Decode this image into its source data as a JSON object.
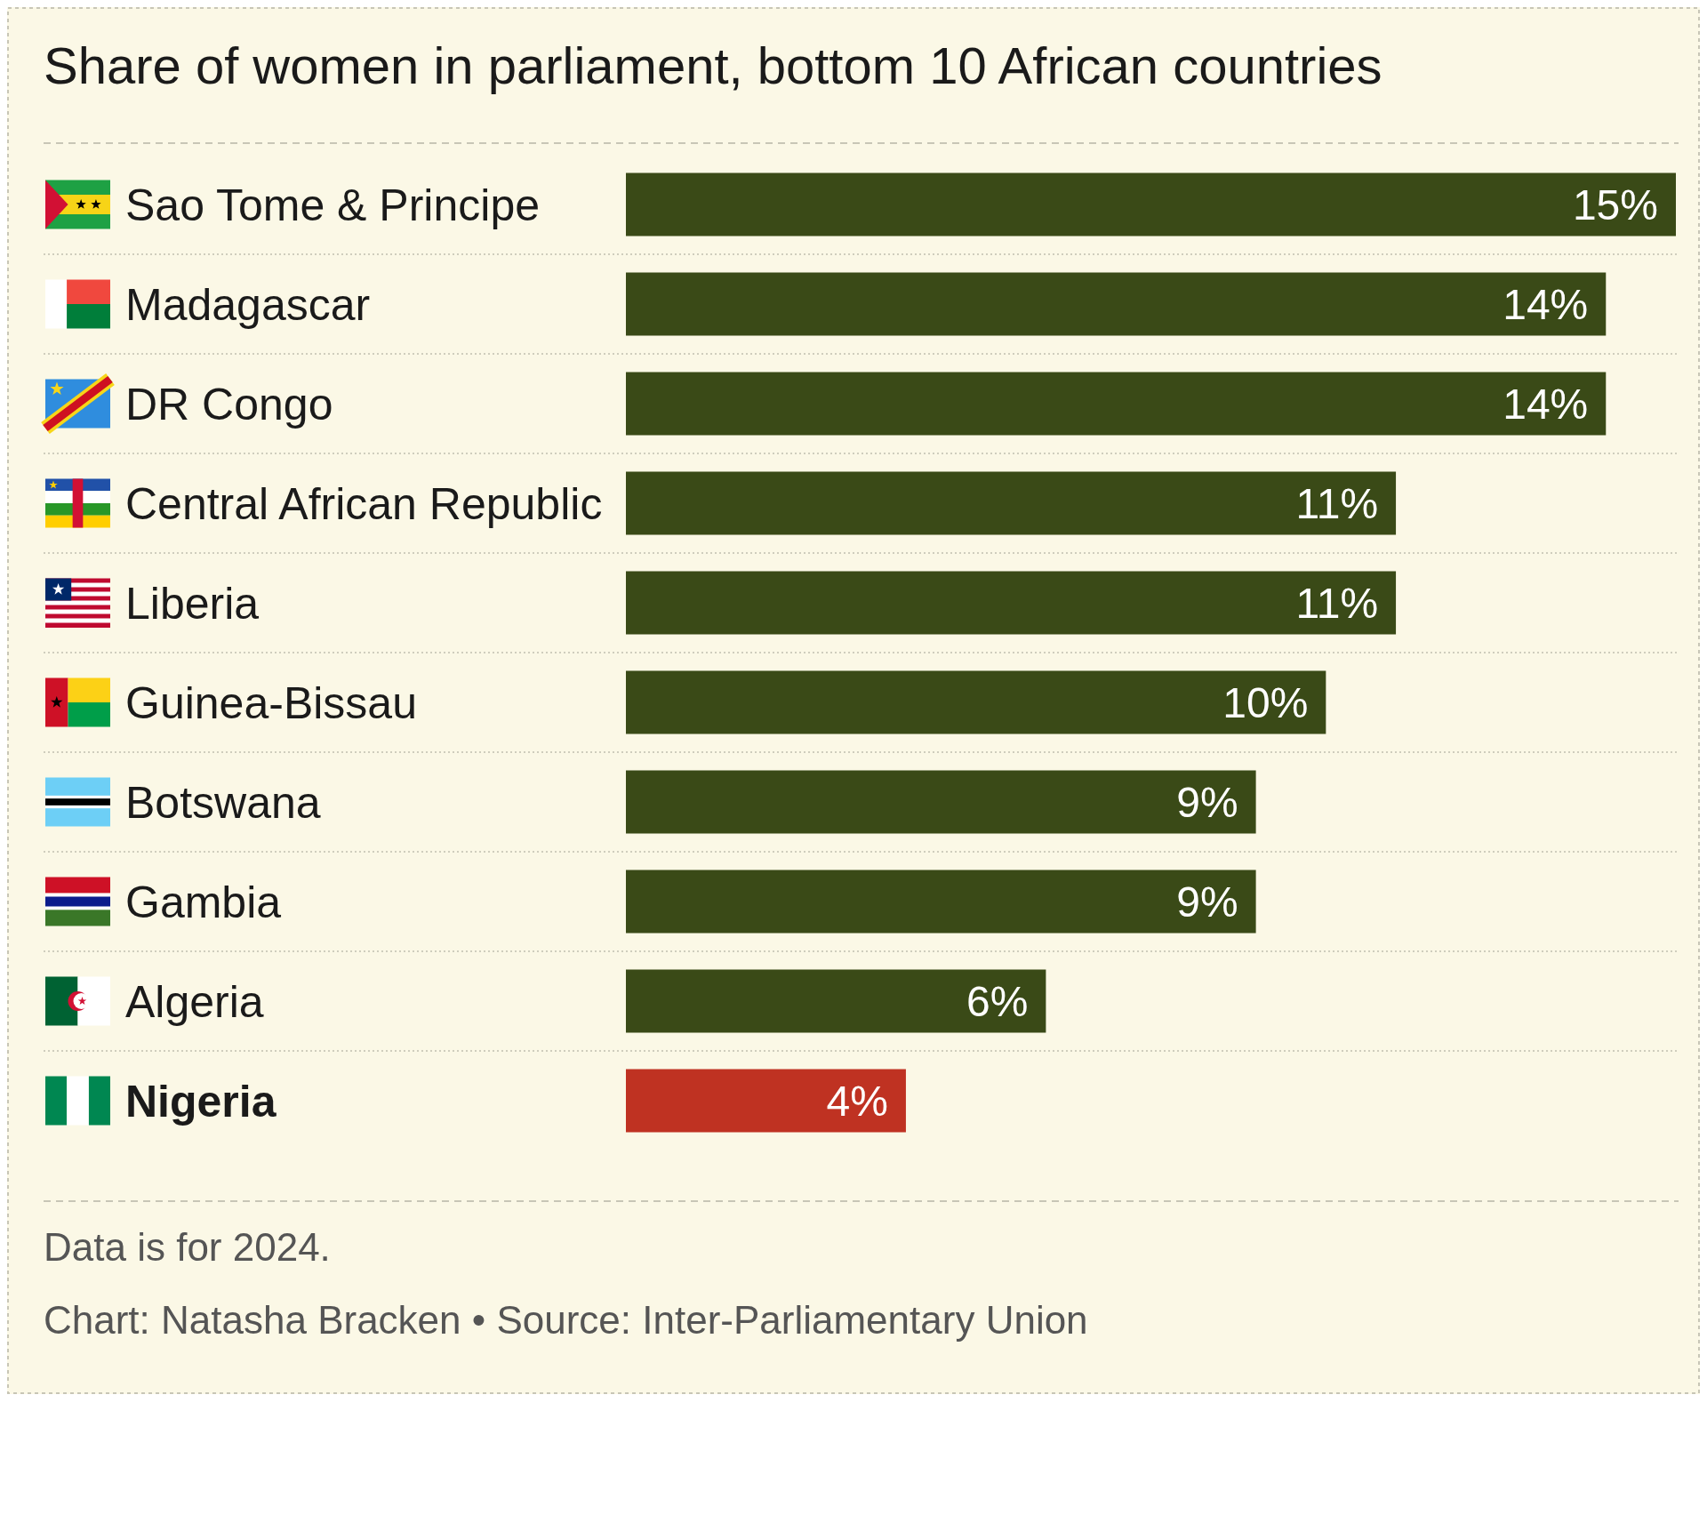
{
  "chart_data": {
    "type": "bar",
    "title": "Share of women in parliament, bottom 10 African countries",
    "categories": [
      "Sao Tome & Principe",
      "Madagascar",
      "DR Congo",
      "Central African Republic",
      "Liberia",
      "Guinea-Bissau",
      "Botswana",
      "Gambia",
      "Algeria",
      "Nigeria"
    ],
    "values": [
      15,
      14,
      14,
      11,
      11,
      10,
      9,
      9,
      6,
      4
    ],
    "colors": [
      "#3a4a17",
      "#3a4a17",
      "#3a4a17",
      "#3a4a17",
      "#3a4a17",
      "#3a4a17",
      "#3a4a17",
      "#3a4a17",
      "#3a4a17",
      "#bf3222"
    ],
    "value_labels": [
      "15%",
      "14%",
      "14%",
      "11%",
      "11%",
      "10%",
      "9%",
      "9%",
      "6%",
      "4%"
    ],
    "annotations": [
      "Data is for 2024.",
      "Chart: Natasha Bracken • Source: Inter-Parliamentary Union"
    ],
    "orientation": "horizontal"
  }
}
